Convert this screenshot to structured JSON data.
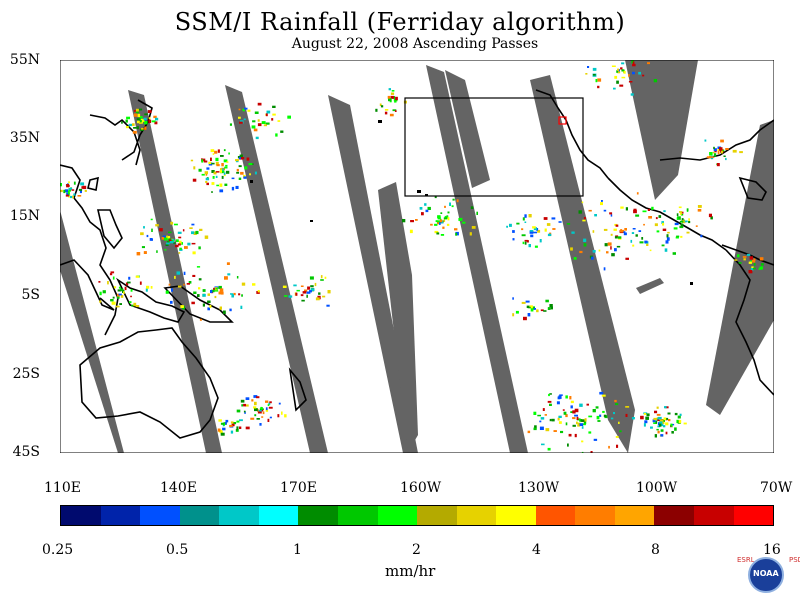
{
  "header": {
    "title": "SSM/I Rainfall (Ferriday algorithm)",
    "subtitle": "August 22, 2008  Ascending Passes"
  },
  "map": {
    "lat_labels": [
      "55N",
      "35N",
      "15N",
      "5S",
      "25S",
      "45S"
    ],
    "lon_labels": [
      "110E",
      "140E",
      "170E",
      "160W",
      "130W",
      "100W",
      "70W"
    ],
    "region_box": {
      "west": "160W",
      "east": "116W",
      "north": "40N",
      "south": "15N"
    },
    "colors": {
      "land_outline": "#000000",
      "missing_swath": "#646464",
      "box": "#000000"
    }
  },
  "colorbar": {
    "colors": [
      "#000a6e",
      "#0023aa",
      "#0050ff",
      "#00918c",
      "#00c8c8",
      "#00ffff",
      "#008c00",
      "#00c800",
      "#00ff00",
      "#b4aa00",
      "#e6d200",
      "#ffff00",
      "#ff5500",
      "#ff7d00",
      "#ffa500",
      "#8c0000",
      "#c80000",
      "#ff0000"
    ],
    "tick_labels": [
      "0.25",
      "0.5",
      "1",
      "2",
      "4",
      "8",
      "16"
    ],
    "units": "mm/hr"
  },
  "logo": {
    "left": "ESRL",
    "right": "PSD",
    "center": "NOAA"
  }
}
